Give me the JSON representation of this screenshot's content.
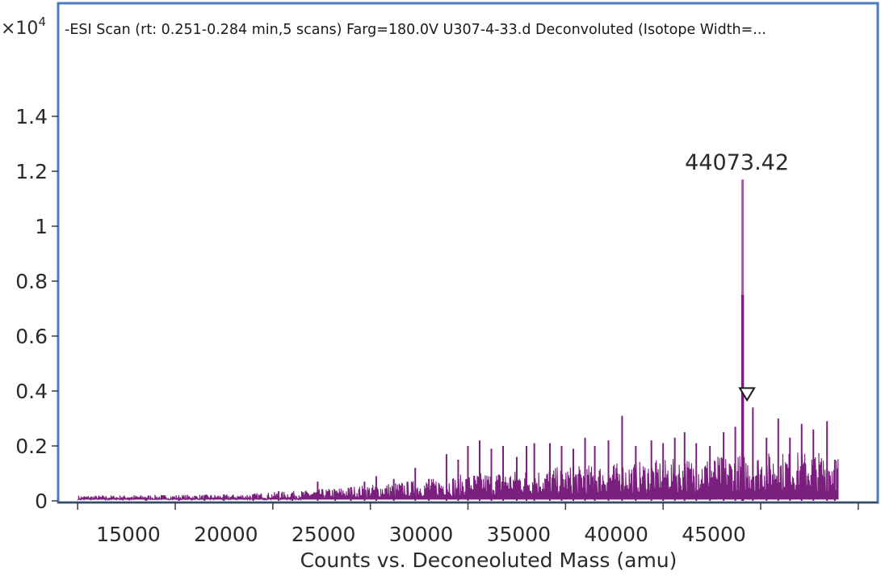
{
  "chart_data": {
    "type": "line",
    "title": "-ESI Scan (rt: 0.251-0.284 min,5 scans) Farg=180.0V U307-4-33.d Deconvoluted (Isotope Width=...",
    "xlabel": "Counts vs. Deconeoluted Mass (amu)",
    "ylabel": "",
    "y_scale_label": "×10",
    "y_scale_exponent": "4",
    "xlim": [
      9000,
      51000
    ],
    "ylim": [
      0,
      1.6
    ],
    "x_ticks": [
      15000,
      20000,
      25000,
      30000,
      35000,
      40000,
      45000
    ],
    "x_tick_labels": [
      "15000",
      "20000",
      "25000",
      "30000",
      "35000",
      "40000",
      "45000"
    ],
    "y_ticks": [
      0,
      0.2,
      0.4,
      0.6,
      0.8,
      1,
      1.2,
      1.4
    ],
    "y_tick_labels": [
      "0",
      "0.2",
      "0.4",
      "0.6",
      "0.8",
      "1",
      "1.2",
      "1.4"
    ],
    "grid": false,
    "series_color": "#7a1f7e",
    "peak": {
      "x": 44073.42,
      "y": 1.17,
      "label": "44073.42"
    },
    "secondary_peak": {
      "x": 44073.42,
      "y": 0.75
    },
    "marker": {
      "x": 44300,
      "y": 0.39
    },
    "spikes": [
      [
        13500,
        0.012
      ],
      [
        15200,
        0.01
      ],
      [
        16500,
        0.012
      ],
      [
        17500,
        0.02
      ],
      [
        19000,
        0.015
      ],
      [
        20300,
        0.035
      ],
      [
        21000,
        0.03
      ],
      [
        22300,
        0.07
      ],
      [
        23200,
        0.03
      ],
      [
        24000,
        0.05
      ],
      [
        24700,
        0.07
      ],
      [
        25300,
        0.09
      ],
      [
        26200,
        0.08
      ],
      [
        27300,
        0.12
      ],
      [
        28000,
        0.08
      ],
      [
        28900,
        0.17
      ],
      [
        29500,
        0.15
      ],
      [
        30000,
        0.2
      ],
      [
        30600,
        0.22
      ],
      [
        31200,
        0.19
      ],
      [
        31800,
        0.2
      ],
      [
        32500,
        0.16
      ],
      [
        33000,
        0.2
      ],
      [
        33400,
        0.21
      ],
      [
        34200,
        0.21
      ],
      [
        34800,
        0.2
      ],
      [
        35400,
        0.19
      ],
      [
        36000,
        0.23
      ],
      [
        36500,
        0.2
      ],
      [
        37200,
        0.22
      ],
      [
        37900,
        0.31
      ],
      [
        38600,
        0.2
      ],
      [
        39400,
        0.22
      ],
      [
        40000,
        0.21
      ],
      [
        40600,
        0.23
      ],
      [
        41100,
        0.25
      ],
      [
        41700,
        0.21
      ],
      [
        42400,
        0.2
      ],
      [
        43100,
        0.25
      ],
      [
        43700,
        0.27
      ],
      [
        44600,
        0.34
      ],
      [
        45300,
        0.23
      ],
      [
        45900,
        0.3
      ],
      [
        46500,
        0.23
      ],
      [
        47100,
        0.28
      ],
      [
        47700,
        0.26
      ],
      [
        48400,
        0.29
      ],
      [
        48800,
        0.15
      ]
    ],
    "baseline": [
      [
        10000,
        0.01
      ],
      [
        18000,
        0.012
      ],
      [
        22000,
        0.02
      ],
      [
        25000,
        0.03
      ],
      [
        28000,
        0.04
      ],
      [
        30000,
        0.05
      ],
      [
        34000,
        0.06
      ],
      [
        38000,
        0.07
      ],
      [
        42000,
        0.08
      ],
      [
        46000,
        0.09
      ],
      [
        49000,
        0.09
      ]
    ],
    "x_end": 49000
  }
}
